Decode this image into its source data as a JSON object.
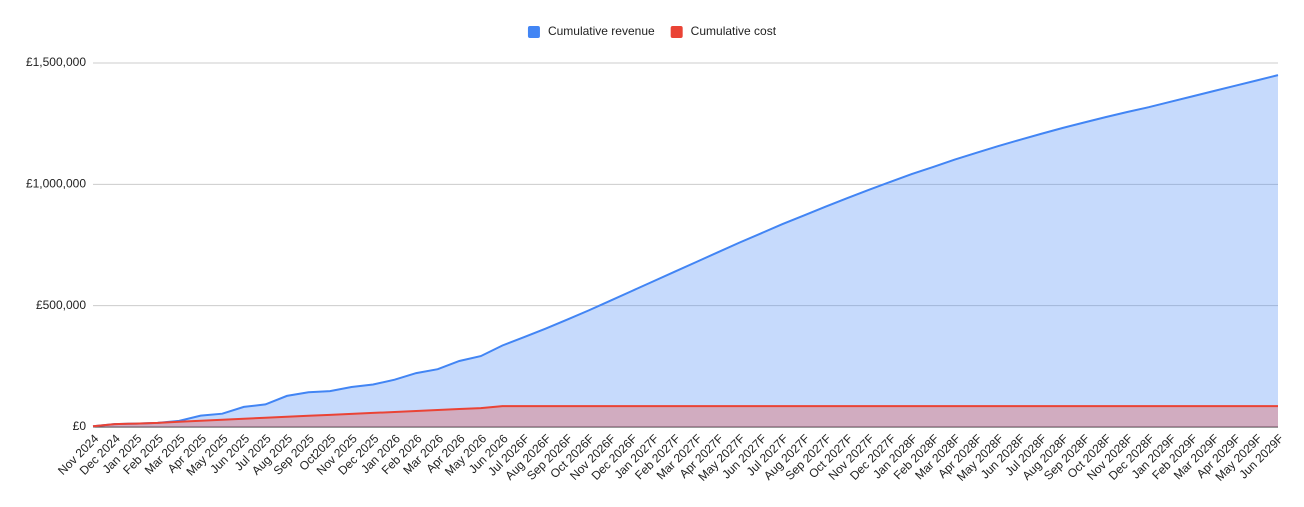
{
  "chart_data": {
    "type": "area",
    "categories": [
      "Nov 2024",
      "Dec 2024",
      "Jan 2025",
      "Feb 2025",
      "Mar 2025",
      "Apr 2025",
      "May 2025",
      "Jun 2025",
      "Jul 2025",
      "Aug 2025",
      "Sep 2025",
      "Oct2025",
      "Nov 2025",
      "Dec 2025",
      "Jan 2026",
      "Feb 2026",
      "Mar 2026",
      "Apr 2026",
      "May 2026",
      "Jun 2026",
      "Jul 2026F",
      "Aug 2026F",
      "Sep 2026F",
      "Oct 2026F",
      "Nov 2026F",
      "Dec 2026F",
      "Jan 2027F",
      "Feb 2027F",
      "Mar 2027F",
      "Apr 2027F",
      "May 2027F",
      "Jun 2027F",
      "Jul 2027F",
      "Aug 2027F",
      "Sep 2027F",
      "Oct 2027F",
      "Nov 2027F",
      "Dec 2027F",
      "Jan 2028F",
      "Feb 2028F",
      "Mar 2028F",
      "Apr 2028F",
      "May 2028F",
      "Jun 2028F",
      "Jul 2028F",
      "Aug 2028F",
      "Sep 2028F",
      "Oct 2028F",
      "Nov 2028F",
      "Dec 2028F",
      "Jan 2029F",
      "Feb 2029F",
      "Mar 2029F",
      "Apr 2029F",
      "May 2029F",
      "Jun 2029F"
    ],
    "series": [
      {
        "name": "Cumulative revenue",
        "color": "#4285f4",
        "values": [
          3000,
          12000,
          14000,
          17000,
          25000,
          47000,
          55000,
          83000,
          93000,
          128000,
          143000,
          148000,
          165000,
          175000,
          195000,
          222000,
          238000,
          272000,
          292000,
          336000,
          370000,
          405000,
          442000,
          480000,
          520000,
          560000,
          600000,
          640000,
          680000,
          720000,
          760000,
          798000,
          836000,
          872000,
          908000,
          943000,
          977000,
          1010000,
          1042000,
          1072000,
          1102000,
          1130000,
          1157000,
          1183000,
          1208000,
          1232000,
          1255000,
          1277000,
          1298000,
          1318000,
          1340000,
          1362000,
          1384000,
          1406000,
          1428000,
          1450000
        ]
      },
      {
        "name": "Cumulative cost",
        "color": "#ea4335",
        "values": [
          3000,
          12000,
          14000,
          17000,
          22000,
          26000,
          30000,
          34000,
          38000,
          42000,
          46000,
          50000,
          54000,
          58000,
          62000,
          66000,
          70000,
          74000,
          78000,
          86000,
          86000,
          86000,
          86000,
          86000,
          86000,
          86000,
          86000,
          86000,
          86000,
          86000,
          86000,
          86000,
          86000,
          86000,
          86000,
          86000,
          86000,
          86000,
          86000,
          86000,
          86000,
          86000,
          86000,
          86000,
          86000,
          86000,
          86000,
          86000,
          86000,
          86000,
          86000,
          86000,
          86000,
          86000,
          86000,
          86000
        ]
      }
    ],
    "ylim": [
      0,
      1500000
    ],
    "yticks": [
      {
        "value": 0,
        "label": "£0"
      },
      {
        "value": 500000,
        "label": "£500,000"
      },
      {
        "value": 1000000,
        "label": "£1,000,000"
      },
      {
        "value": 1500000,
        "label": "£1,500,000"
      }
    ],
    "grid": true,
    "legend": "top"
  }
}
